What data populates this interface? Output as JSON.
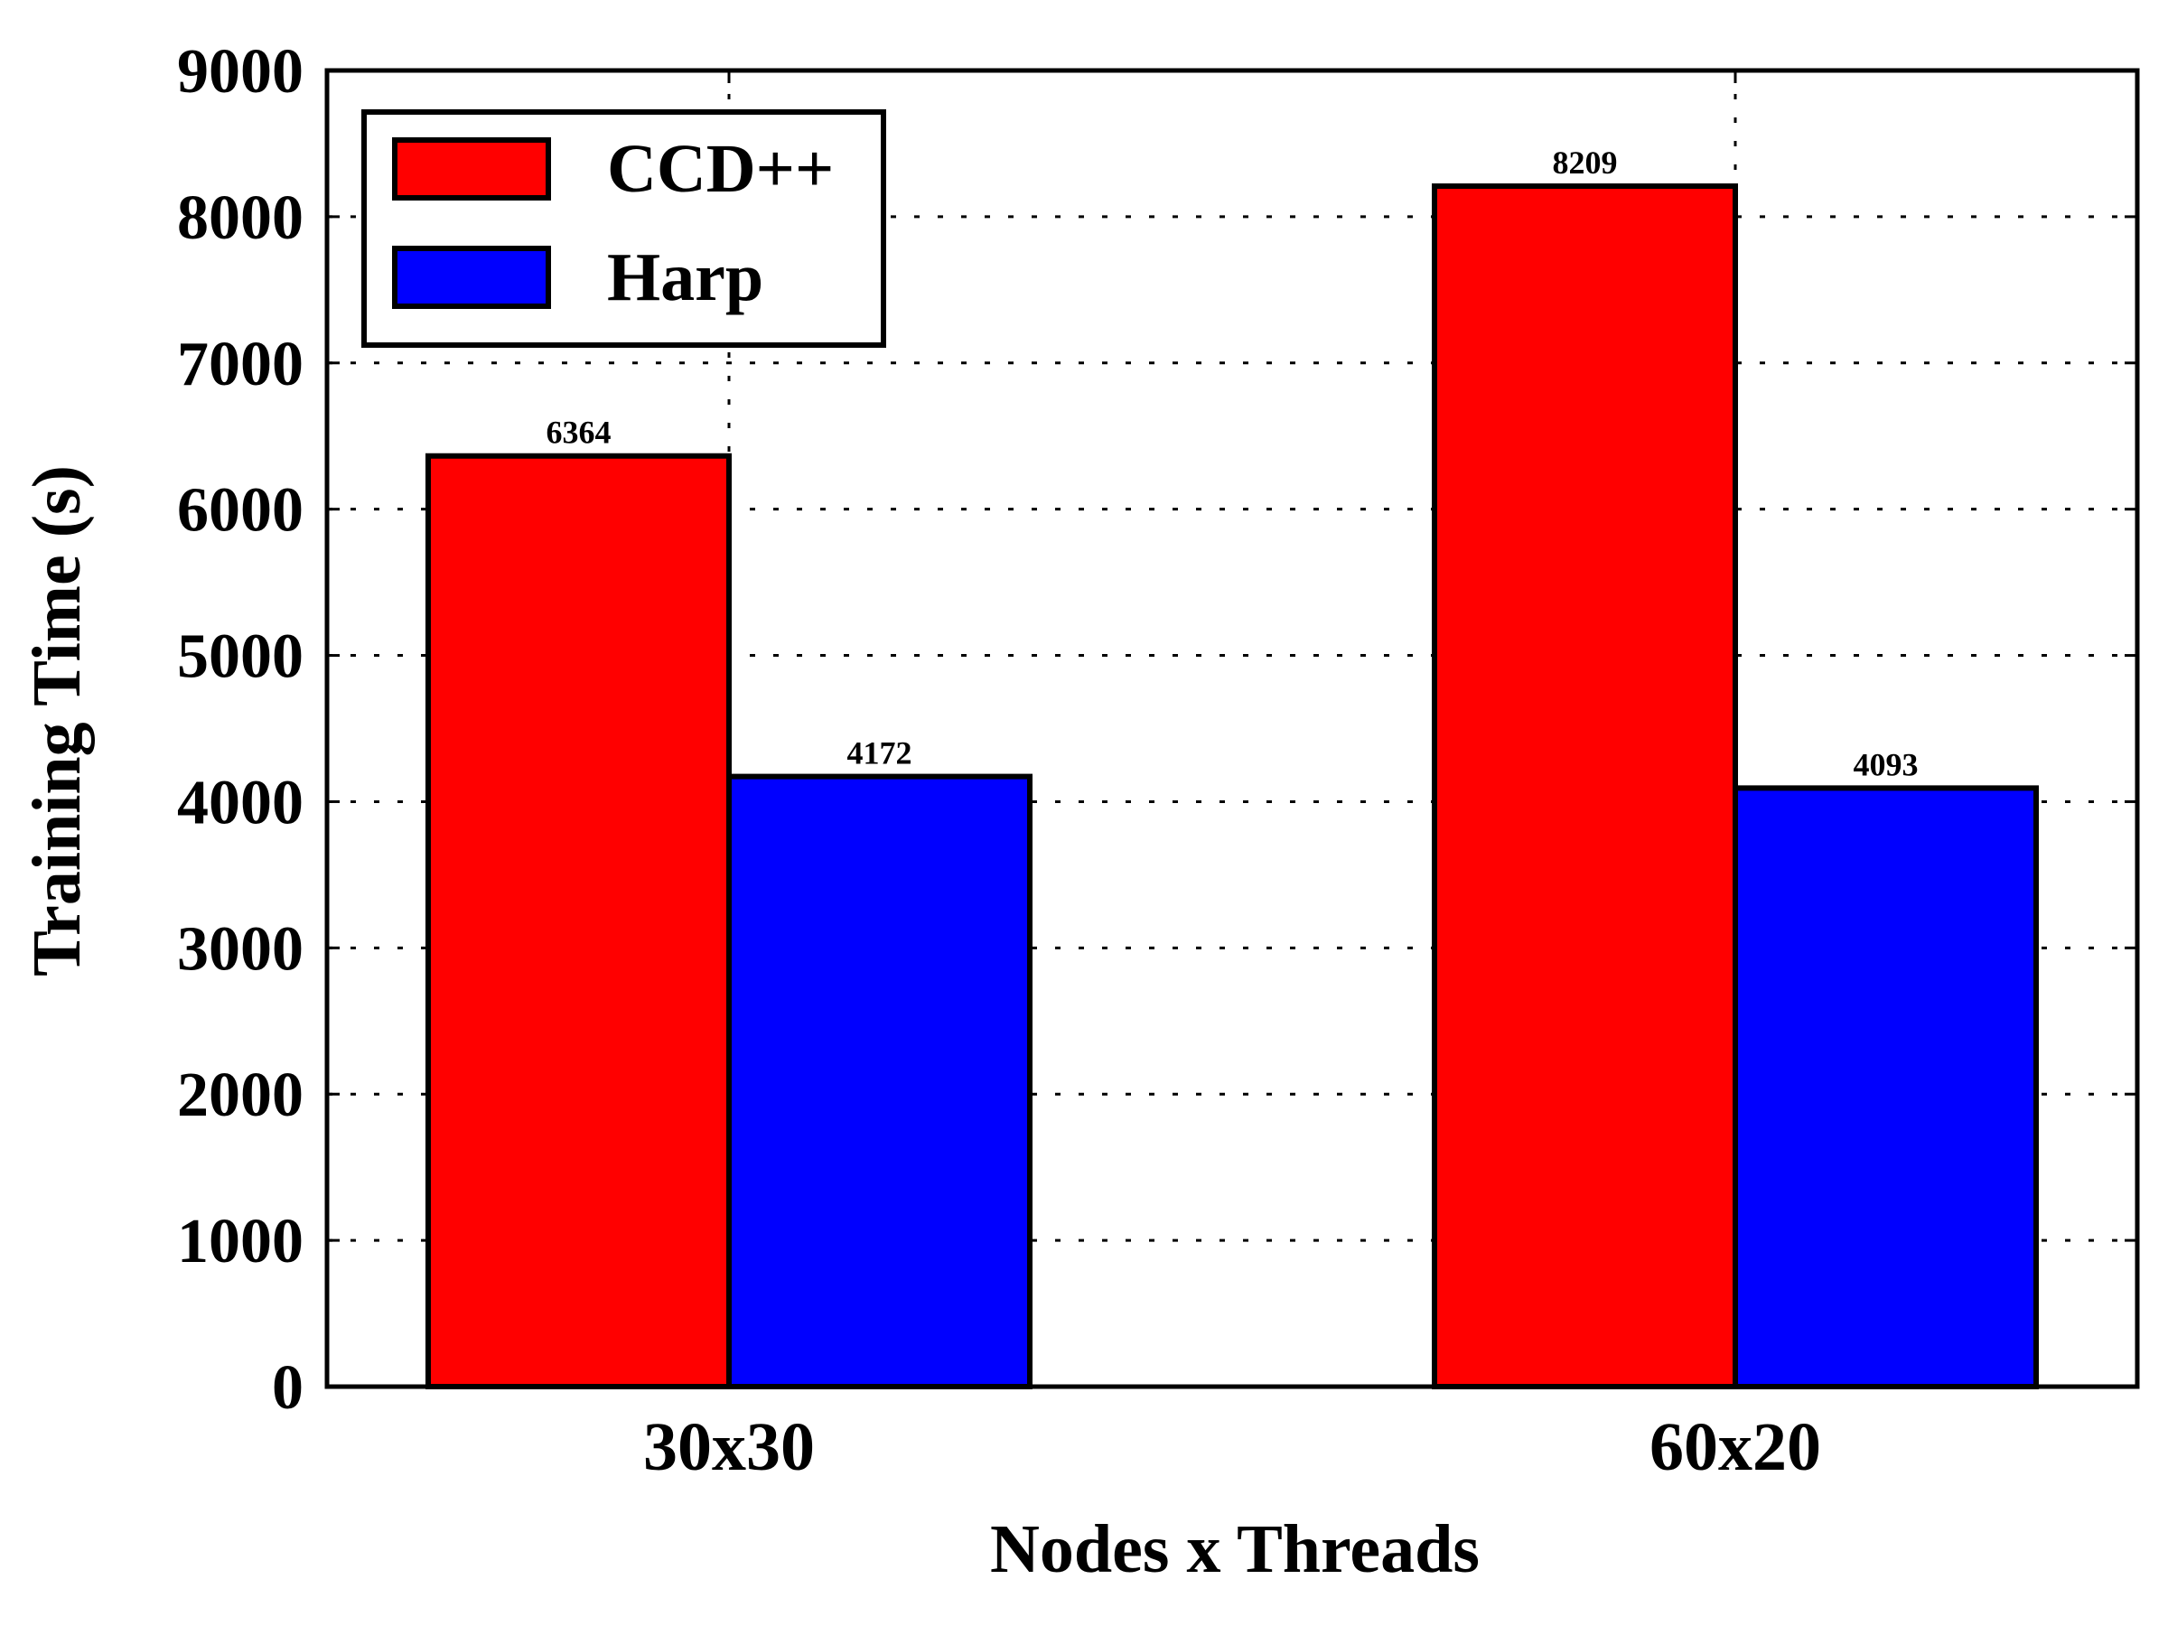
{
  "chart_data": {
    "type": "bar",
    "title": "",
    "xlabel": "Nodes x Threads",
    "ylabel": "Training Time (s)",
    "categories": [
      "30x30",
      "60x20"
    ],
    "series": [
      {
        "name": "CCD++",
        "values": [
          6364,
          8209
        ],
        "color": "#ff0000"
      },
      {
        "name": "Harp",
        "values": [
          4172,
          4093
        ],
        "color": "#0000ff"
      }
    ],
    "data_labels": [
      [
        "6364",
        "8209"
      ],
      [
        "4172",
        "4093"
      ]
    ],
    "ylim": [
      0,
      9000
    ],
    "yticks": [
      0,
      1000,
      2000,
      3000,
      4000,
      5000,
      6000,
      7000,
      8000,
      9000
    ],
    "ytick_labels": [
      "0",
      "1000",
      "2000",
      "3000",
      "4000",
      "5000",
      "6000",
      "7000",
      "8000",
      "9000"
    ],
    "grid": true,
    "grid_style": "dotted",
    "legend_position": "top-left"
  }
}
